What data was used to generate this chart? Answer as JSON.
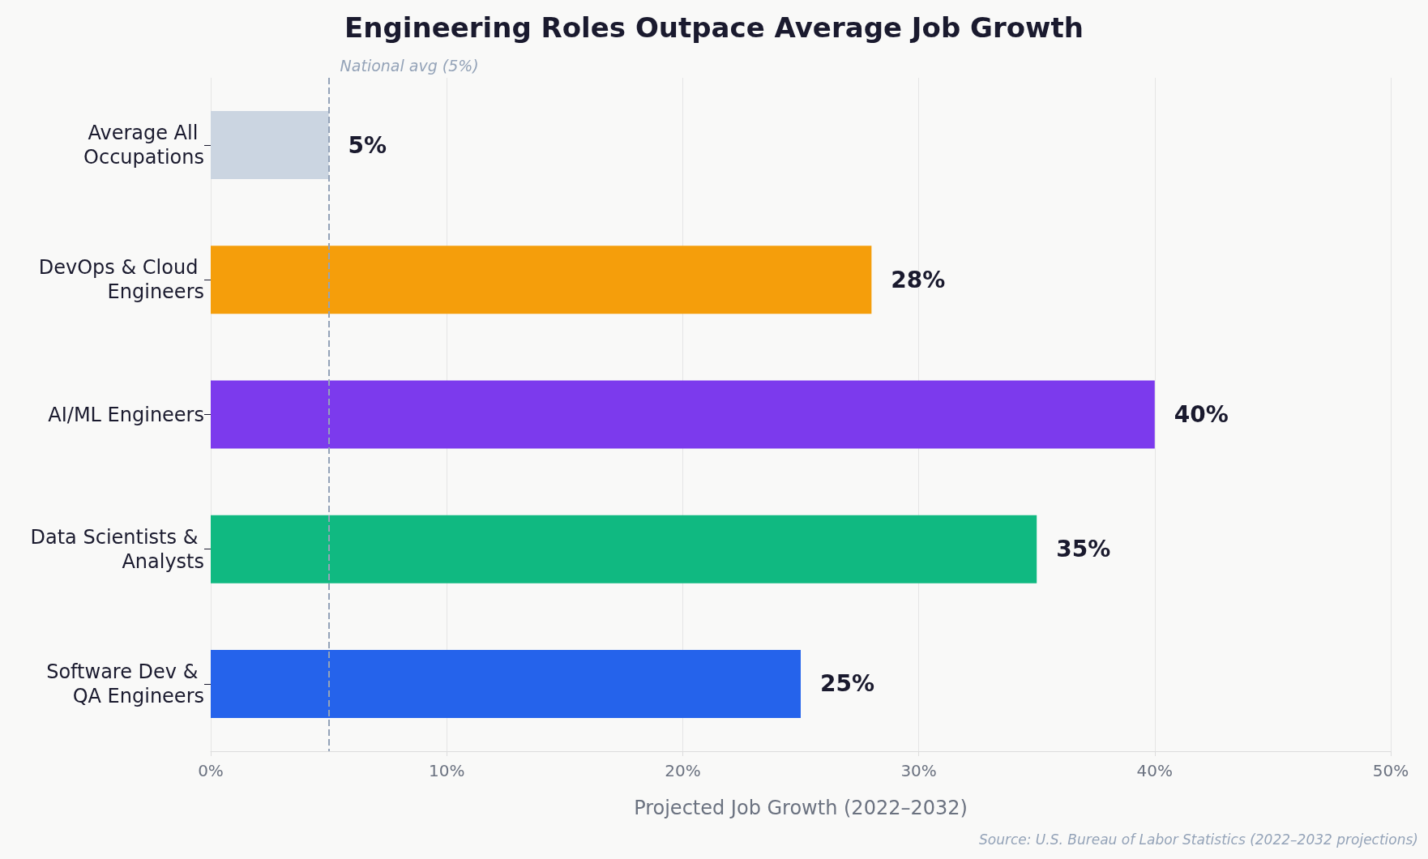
{
  "chart_data": {
    "type": "bar",
    "orientation": "horizontal",
    "title": "Engineering Roles Outpace Average Job Growth",
    "xlabel": "Projected Job Growth (2022–2032)",
    "categories": [
      "Average All Occupations",
      "DevOps & Cloud Engineers",
      "AI/ML Engineers",
      "Data Scientists & Analysts",
      "Software Dev & QA Engineers"
    ],
    "values": [
      5,
      28,
      40,
      35,
      25
    ],
    "colors": [
      "#cbd5e1",
      "#f59e0b",
      "#7c3aed",
      "#10b981",
      "#2563eb"
    ],
    "value_labels": [
      "5%",
      "28%",
      "40%",
      "35%",
      "25%"
    ],
    "xlim": [
      0,
      50
    ],
    "xticks": [
      {
        "value": 0,
        "label": "0%"
      },
      {
        "value": 10,
        "label": "10%"
      },
      {
        "value": 20,
        "label": "20%"
      },
      {
        "value": 30,
        "label": "30%"
      },
      {
        "value": 40,
        "label": "40%"
      },
      {
        "value": 50,
        "label": "50%"
      }
    ],
    "grid": "x",
    "ref_lines": [
      {
        "axis": "x",
        "value": 5,
        "label": "National avg (5%)",
        "color": "#94a3b8",
        "line_style": "dashed"
      }
    ],
    "annotations": [
      "Source: U.S. Bureau of Labor Statistics (2022–2032 projections)"
    ]
  }
}
